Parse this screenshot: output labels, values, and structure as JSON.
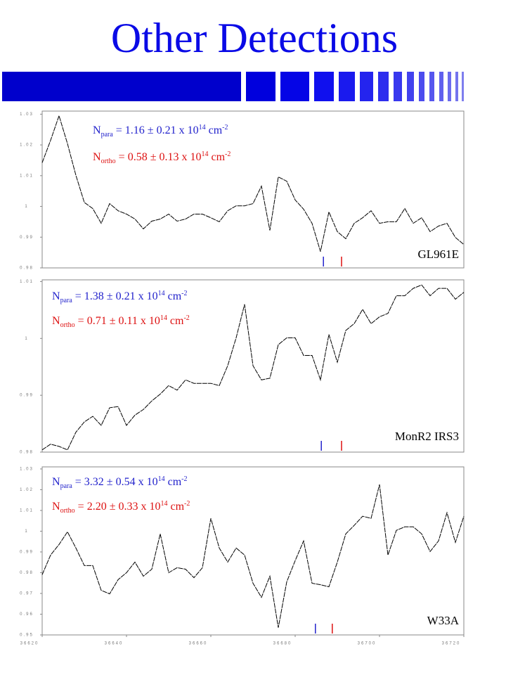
{
  "title": "Other Detections",
  "chart_data": [
    {
      "type": "line",
      "source": "GL961E",
      "x": [
        36620,
        36622,
        36624,
        36626,
        36628,
        36630,
        36632,
        36634,
        36636,
        36638,
        36640,
        36642,
        36644,
        36646,
        36648,
        36650,
        36652,
        36654,
        36656,
        36658,
        36660,
        36662,
        36664,
        36666,
        36668,
        36670,
        36672,
        36674,
        36676,
        36678,
        36680,
        36682,
        36684,
        36686,
        36688,
        36690,
        36692,
        36694,
        36696,
        36698,
        36700,
        36702,
        36704,
        36706,
        36708,
        36710,
        36712,
        36714,
        36716,
        36718,
        36720
      ],
      "values": [
        1.0142,
        1.0215,
        1.0295,
        1.0204,
        1.0101,
        1.0013,
        0.9993,
        0.9945,
        1.0009,
        0.9986,
        0.9975,
        0.9959,
        0.9927,
        0.9952,
        0.9959,
        0.9975,
        0.9952,
        0.9959,
        0.9975,
        0.9975,
        0.9963,
        0.995,
        0.9986,
        1.0002,
        1.0002,
        1.0009,
        1.0066,
        0.9922,
        1.0096,
        1.0082,
        1.0021,
        0.9991,
        0.9945,
        0.9853,
        0.9982,
        0.9918,
        0.9895,
        0.9945,
        0.9963,
        0.9986,
        0.9945,
        0.995,
        0.995,
        0.9993,
        0.9945,
        0.9963,
        0.9918,
        0.9936,
        0.9945,
        0.9899,
        0.9876
      ],
      "color": "#000000",
      "xlim": [
        36620,
        36720
      ],
      "ylim": [
        0.98,
        1.031
      ],
      "yticks": [
        0.98,
        0.99,
        1,
        1.01,
        1.02,
        1.03
      ],
      "line_markers": [
        {
          "x": 36686.7,
          "color": "#2222cc"
        },
        {
          "x": 36691,
          "color": "#dd1111"
        }
      ],
      "annotations": [
        {
          "parts": [
            "N",
            "para",
            " =  1.16 ± 0.21 x 10",
            "14",
            " cm",
            "-2"
          ],
          "color": "#2222cc"
        },
        {
          "parts": [
            "N",
            "ortho",
            " = 0.58 ± 0.13 x 10",
            "14",
            " cm",
            "-2"
          ],
          "color": "#dd1111"
        }
      ]
    },
    {
      "type": "line",
      "source": "MonR2 IRS3",
      "x": [
        36620,
        36622,
        36624,
        36626,
        36628,
        36630,
        36632,
        36634,
        36636,
        36638,
        36640,
        36642,
        36644,
        36646,
        36648,
        36650,
        36652,
        36654,
        36656,
        36658,
        36660,
        36662,
        36664,
        36666,
        36668,
        36670,
        36672,
        36674,
        36676,
        36678,
        36680,
        36682,
        36684,
        36686,
        36688,
        36690,
        36692,
        36694,
        36696,
        36698,
        36700,
        36702,
        36704,
        36706,
        36708,
        36710,
        36712,
        36714,
        36716,
        36718,
        36720
      ],
      "values": [
        0.9804,
        0.9814,
        0.981,
        0.9804,
        0.9835,
        0.9853,
        0.9863,
        0.9847,
        0.9878,
        0.988,
        0.9847,
        0.9865,
        0.9875,
        0.989,
        0.9902,
        0.9917,
        0.9909,
        0.9927,
        0.9921,
        0.9921,
        0.9921,
        0.9917,
        0.9952,
        1.0001,
        1.006,
        0.9952,
        0.9927,
        0.993,
        0.9989,
        1.0001,
        1.0001,
        0.997,
        0.997,
        0.9927,
        1.0007,
        0.9958,
        1.0014,
        1.0026,
        1.0051,
        1.0026,
        1.0038,
        1.0044,
        1.0075,
        1.0075,
        1.0088,
        1.0094,
        1.0075,
        1.0088,
        1.0088,
        1.0069,
        1.0081
      ],
      "color": "#000000",
      "xlim": [
        36620,
        36720
      ],
      "ylim": [
        0.98,
        1.0103
      ],
      "yticks": [
        0.98,
        0.99,
        1,
        1.01
      ],
      "line_markers": [
        {
          "x": 36686.2,
          "color": "#2222cc"
        },
        {
          "x": 36691,
          "color": "#dd1111"
        }
      ],
      "annotations": [
        {
          "parts": [
            "N",
            "para",
            " =  1.38 ± 0.21 x 10",
            "14",
            " cm",
            "-2"
          ],
          "color": "#2222cc"
        },
        {
          "parts": [
            "N",
            "ortho",
            " = 0.71 ± 0.11 x 10",
            "14",
            " cm",
            "-2"
          ],
          "color": "#dd1111"
        }
      ]
    },
    {
      "type": "line",
      "source": "W33A",
      "x": [
        36620,
        36622,
        36624,
        36626,
        36628,
        36630,
        36632,
        36634,
        36636,
        36638,
        36640,
        36642,
        36644,
        36646,
        36648,
        36650,
        36652,
        36654,
        36656,
        36658,
        36660,
        36662,
        36664,
        36666,
        36668,
        36670,
        36672,
        36674,
        36676,
        36678,
        36680,
        36682,
        36684,
        36686,
        36688,
        36690,
        36692,
        36694,
        36696,
        36698,
        36700,
        36702,
        36704,
        36706,
        36708,
        36710,
        36712,
        36714,
        36716,
        36718,
        36720
      ],
      "values": [
        0.979,
        0.9885,
        0.9936,
        0.9997,
        0.9919,
        0.9834,
        0.9834,
        0.9715,
        0.9698,
        0.9766,
        0.98,
        0.9851,
        0.9783,
        0.9817,
        0.9987,
        0.98,
        0.9824,
        0.9817,
        0.9776,
        0.9824,
        1.0062,
        0.9919,
        0.9851,
        0.9919,
        0.9885,
        0.9749,
        0.9681,
        0.9783,
        0.9535,
        0.9756,
        0.9858,
        0.9953,
        0.9749,
        0.9742,
        0.9732,
        0.9851,
        0.9987,
        1.0028,
        1.0072,
        1.0062,
        1.0225,
        0.9885,
        1.0004,
        1.0021,
        1.0021,
        0.9987,
        0.9902,
        0.9953,
        1.0089,
        0.9946,
        1.0072
      ],
      "color": "#000000",
      "xlim": [
        36620,
        36720
      ],
      "ylim": [
        0.95,
        1.031
      ],
      "xticks": [
        36620,
        36640,
        36660,
        36680,
        36700,
        36720
      ],
      "yticks": [
        0.95,
        0.96,
        0.97,
        0.98,
        0.99,
        1,
        1.01,
        1.02,
        1.03
      ],
      "line_markers": [
        {
          "x": 36684.8,
          "color": "#2222cc"
        },
        {
          "x": 36688.8,
          "color": "#dd1111"
        }
      ],
      "annotations": [
        {
          "parts": [
            "N",
            "para",
            " =  3.32 ± 0.54 x 10",
            "14",
            " cm",
            "-2"
          ],
          "color": "#2222cc"
        },
        {
          "parts": [
            "N",
            "ortho",
            " = 2.20 ± 0.33 x 10",
            "14",
            " cm",
            "-2"
          ],
          "color": "#dd1111"
        }
      ]
    }
  ]
}
